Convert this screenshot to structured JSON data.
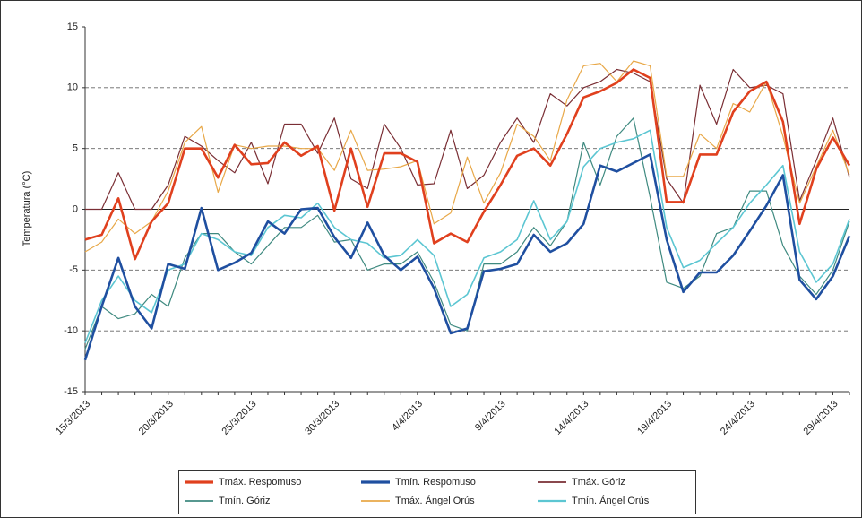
{
  "chart_data": {
    "type": "line",
    "y_label": "Temperatura (°C)",
    "categories": [
      "15/3/2013",
      null,
      null,
      null,
      null,
      "20/3/2013",
      null,
      null,
      null,
      null,
      "25/3/2013",
      null,
      null,
      null,
      null,
      "30/3/2013",
      null,
      null,
      null,
      null,
      "4/4/2013",
      null,
      null,
      null,
      null,
      "9/4/2013",
      null,
      null,
      null,
      null,
      "14/4/2013",
      null,
      null,
      null,
      null,
      "19/4/2013",
      null,
      null,
      null,
      null,
      "24/4/2013",
      null,
      null,
      null,
      null,
      "29/4/2013",
      null
    ],
    "ylim": [
      -15,
      15
    ],
    "yticks": [
      -15,
      -10,
      -5,
      0,
      5,
      10,
      15
    ],
    "grid": true,
    "series": [
      {
        "name": "Tmáx. Respomuso",
        "color": "#e0401e",
        "width": 2.6,
        "values": [
          -2.5,
          -2.1,
          0.9,
          -4.1,
          -1.0,
          0.5,
          5.0,
          5.0,
          2.6,
          5.3,
          3.7,
          3.8,
          5.5,
          4.4,
          5.2,
          -0.1,
          5.0,
          0.2,
          4.6,
          4.6,
          3.9,
          -2.8,
          -2.0,
          -2.7,
          -0.2,
          2.0,
          4.4,
          5.0,
          3.6,
          6.2,
          9.2,
          9.7,
          10.4,
          11.5,
          10.8,
          0.6,
          0.6,
          4.5,
          4.5,
          8.0,
          9.7,
          10.5,
          7.2,
          -1.2,
          3.3,
          5.9,
          3.6
        ]
      },
      {
        "name": "Tmín. Respomuso",
        "color": "#1f4fa0",
        "width": 2.6,
        "values": [
          -12.4,
          -8.0,
          -4.0,
          -8.0,
          -9.8,
          -4.5,
          -4.9,
          0.1,
          -5.0,
          -4.4,
          -3.6,
          -1.0,
          -2.0,
          0.0,
          0.1,
          -2.3,
          -4.0,
          -1.1,
          -3.8,
          -5.0,
          -3.9,
          -6.5,
          -10.2,
          -9.8,
          -5.1,
          -4.9,
          -4.5,
          -2.1,
          -3.5,
          -2.8,
          -1.2,
          3.6,
          3.1,
          3.8,
          4.5,
          -2.5,
          -6.8,
          -5.2,
          -5.2,
          -3.8,
          -1.8,
          0.3,
          2.8,
          -5.8,
          -7.4,
          -5.5,
          -2.2
        ]
      },
      {
        "name": "Tmáx. Góriz",
        "color": "#7a2e34",
        "width": 1.2,
        "values": [
          0,
          0,
          3.0,
          0,
          0,
          2.0,
          6.0,
          5.2,
          4.0,
          3.0,
          5.5,
          2.1,
          7.0,
          7.0,
          4.6,
          7.5,
          2.5,
          1.7,
          7.0,
          5.0,
          2.0,
          2.1,
          6.5,
          1.7,
          2.8,
          5.5,
          7.5,
          5.5,
          9.5,
          8.5,
          10.0,
          10.5,
          11.5,
          11.2,
          10.5,
          2.5,
          0.5,
          10.2,
          7.0,
          11.5,
          10.0,
          10.2,
          9.5,
          0.7,
          4.0,
          7.5,
          2.6
        ]
      },
      {
        "name": "Tmín. Góriz",
        "color": "#3f8a80",
        "width": 1.2,
        "values": [
          -11.5,
          -8.0,
          -9.0,
          -8.6,
          -7.0,
          -8.0,
          -4.0,
          -2.0,
          -2.0,
          -3.5,
          -4.5,
          -3.0,
          -1.5,
          -1.5,
          -0.5,
          -2.7,
          -2.5,
          -5.0,
          -4.5,
          -4.5,
          -3.5,
          -6.0,
          -9.5,
          -10.0,
          -4.5,
          -4.5,
          -3.5,
          -1.5,
          -3.0,
          -1.0,
          5.5,
          2.0,
          6.0,
          7.5,
          1.0,
          -6.0,
          -6.5,
          -5.5,
          -2.0,
          -1.5,
          1.5,
          1.5,
          -3.0,
          -5.5,
          -7.0,
          -5.0,
          -1.0
        ]
      },
      {
        "name": "Tmáx. Ángel Orús",
        "color": "#e8a848",
        "width": 1.2,
        "values": [
          -3.5,
          -2.7,
          -0.8,
          -2.0,
          -1.0,
          1.5,
          5.5,
          6.8,
          1.4,
          5.3,
          5.0,
          5.2,
          5.2,
          5.0,
          5.0,
          3.2,
          6.5,
          3.2,
          3.3,
          3.5,
          4.0,
          -1.2,
          -0.3,
          4.3,
          0.5,
          3.0,
          7.0,
          6.0,
          4.0,
          9.0,
          11.8,
          12.0,
          10.5,
          12.2,
          11.8,
          2.7,
          2.7,
          6.2,
          5.0,
          8.7,
          8.0,
          10.5,
          6.0,
          0.5,
          3.5,
          6.5,
          2.8
        ]
      },
      {
        "name": "Tmín. Ángel Orús",
        "color": "#5cc6d2",
        "width": 1.6,
        "values": [
          -11.0,
          -7.5,
          -5.5,
          -7.5,
          -8.5,
          -5.0,
          -4.5,
          -2.0,
          -2.5,
          -3.5,
          -3.8,
          -1.5,
          -0.5,
          -0.7,
          0.5,
          -1.5,
          -2.5,
          -2.8,
          -4.0,
          -3.8,
          -2.5,
          -3.8,
          -8.0,
          -7.0,
          -4.0,
          -3.5,
          -2.5,
          0.7,
          -2.5,
          -1.0,
          3.5,
          5.0,
          5.5,
          5.8,
          6.5,
          -1.5,
          -4.8,
          -4.2,
          -2.8,
          -1.5,
          0.5,
          2.0,
          3.6,
          -3.5,
          -6.0,
          -4.5,
          -0.8
        ]
      }
    ]
  }
}
